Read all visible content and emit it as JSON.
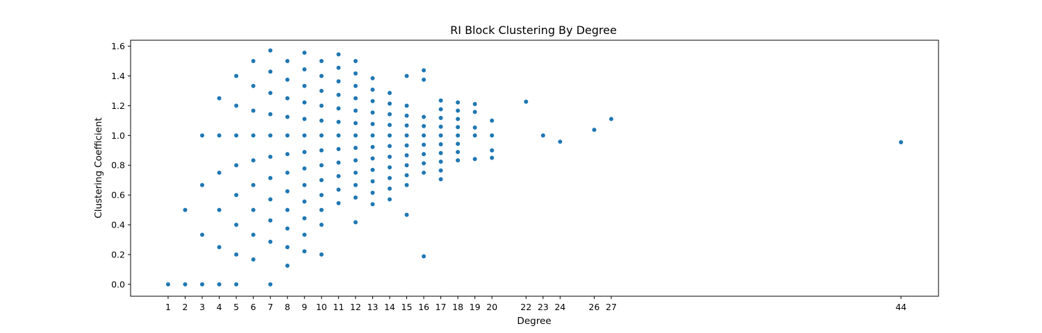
{
  "chart_data": {
    "type": "scatter",
    "title": "RI Block Clustering By Degree",
    "xlabel": "Degree",
    "ylabel": "Clustering Coefficient",
    "xlim": [
      -1.2,
      46.2
    ],
    "ylim": [
      -0.08,
      1.64
    ],
    "x_ticks": [
      1,
      2,
      3,
      4,
      5,
      6,
      7,
      8,
      9,
      10,
      11,
      12,
      13,
      14,
      15,
      16,
      17,
      18,
      19,
      20,
      22,
      23,
      24,
      26,
      27,
      44
    ],
    "y_ticks": [
      0.0,
      0.2,
      0.4,
      0.6,
      0.8,
      1.0,
      1.2,
      1.4,
      1.6
    ],
    "y_tick_labels": [
      "0.0",
      "0.2",
      "0.4",
      "0.6",
      "0.8",
      "1.0",
      "1.2",
      "1.4",
      "1.6"
    ],
    "grid": false,
    "marker_color": "#1f77b4",
    "points": [
      [
        1,
        0.0
      ],
      [
        2,
        0.0
      ],
      [
        2,
        0.5
      ],
      [
        3,
        0.0
      ],
      [
        3,
        0.333
      ],
      [
        3,
        0.667
      ],
      [
        3,
        1.0
      ],
      [
        4,
        0.0
      ],
      [
        4,
        0.25
      ],
      [
        4,
        0.5
      ],
      [
        4,
        0.75
      ],
      [
        4,
        1.0
      ],
      [
        4,
        1.25
      ],
      [
        5,
        0.0
      ],
      [
        5,
        0.2
      ],
      [
        5,
        0.4
      ],
      [
        5,
        0.6
      ],
      [
        5,
        0.8
      ],
      [
        5,
        1.0
      ],
      [
        5,
        1.2
      ],
      [
        5,
        1.4
      ],
      [
        6,
        0.167
      ],
      [
        6,
        0.333
      ],
      [
        6,
        0.5
      ],
      [
        6,
        0.667
      ],
      [
        6,
        0.833
      ],
      [
        6,
        1.0
      ],
      [
        6,
        1.167
      ],
      [
        6,
        1.333
      ],
      [
        6,
        1.5
      ],
      [
        7,
        0.0
      ],
      [
        7,
        0.286
      ],
      [
        7,
        0.429
      ],
      [
        7,
        0.571
      ],
      [
        7,
        0.714
      ],
      [
        7,
        0.857
      ],
      [
        7,
        1.0
      ],
      [
        7,
        1.143
      ],
      [
        7,
        1.286
      ],
      [
        7,
        1.429
      ],
      [
        7,
        1.571
      ],
      [
        8,
        0.125
      ],
      [
        8,
        0.25
      ],
      [
        8,
        0.375
      ],
      [
        8,
        0.5
      ],
      [
        8,
        0.625
      ],
      [
        8,
        0.75
      ],
      [
        8,
        0.875
      ],
      [
        8,
        1.0
      ],
      [
        8,
        1.125
      ],
      [
        8,
        1.25
      ],
      [
        8,
        1.375
      ],
      [
        8,
        1.5
      ],
      [
        9,
        0.222
      ],
      [
        9,
        0.333
      ],
      [
        9,
        0.444
      ],
      [
        9,
        0.556
      ],
      [
        9,
        0.667
      ],
      [
        9,
        0.778
      ],
      [
        9,
        0.889
      ],
      [
        9,
        1.0
      ],
      [
        9,
        1.111
      ],
      [
        9,
        1.222
      ],
      [
        9,
        1.333
      ],
      [
        9,
        1.444
      ],
      [
        9,
        1.556
      ],
      [
        10,
        0.2
      ],
      [
        10,
        0.4
      ],
      [
        10,
        0.5
      ],
      [
        10,
        0.6
      ],
      [
        10,
        0.7
      ],
      [
        10,
        0.8
      ],
      [
        10,
        0.9
      ],
      [
        10,
        1.0
      ],
      [
        10,
        1.1
      ],
      [
        10,
        1.2
      ],
      [
        10,
        1.3
      ],
      [
        10,
        1.4
      ],
      [
        10,
        1.5
      ],
      [
        11,
        0.545
      ],
      [
        11,
        0.636
      ],
      [
        11,
        0.727
      ],
      [
        11,
        0.818
      ],
      [
        11,
        0.909
      ],
      [
        11,
        1.0
      ],
      [
        11,
        1.091
      ],
      [
        11,
        1.182
      ],
      [
        11,
        1.273
      ],
      [
        11,
        1.364
      ],
      [
        11,
        1.455
      ],
      [
        11,
        1.545
      ],
      [
        12,
        0.417
      ],
      [
        12,
        0.583
      ],
      [
        12,
        0.667
      ],
      [
        12,
        0.75
      ],
      [
        12,
        0.833
      ],
      [
        12,
        0.917
      ],
      [
        12,
        1.0
      ],
      [
        12,
        1.083
      ],
      [
        12,
        1.167
      ],
      [
        12,
        1.25
      ],
      [
        12,
        1.333
      ],
      [
        12,
        1.417
      ],
      [
        12,
        1.5
      ],
      [
        13,
        0.538
      ],
      [
        13,
        0.615
      ],
      [
        13,
        0.692
      ],
      [
        13,
        0.769
      ],
      [
        13,
        0.846
      ],
      [
        13,
        0.923
      ],
      [
        13,
        1.0
      ],
      [
        13,
        1.077
      ],
      [
        13,
        1.154
      ],
      [
        13,
        1.231
      ],
      [
        13,
        1.308
      ],
      [
        13,
        1.385
      ],
      [
        14,
        0.571
      ],
      [
        14,
        0.643
      ],
      [
        14,
        0.714
      ],
      [
        14,
        0.786
      ],
      [
        14,
        0.857
      ],
      [
        14,
        0.929
      ],
      [
        14,
        1.0
      ],
      [
        14,
        1.071
      ],
      [
        14,
        1.143
      ],
      [
        14,
        1.214
      ],
      [
        14,
        1.286
      ],
      [
        15,
        0.467
      ],
      [
        15,
        0.667
      ],
      [
        15,
        0.733
      ],
      [
        15,
        0.8
      ],
      [
        15,
        0.867
      ],
      [
        15,
        0.933
      ],
      [
        15,
        1.0
      ],
      [
        15,
        1.067
      ],
      [
        15,
        1.133
      ],
      [
        15,
        1.2
      ],
      [
        15,
        1.4
      ],
      [
        16,
        0.188
      ],
      [
        16,
        0.75
      ],
      [
        16,
        0.813
      ],
      [
        16,
        0.875
      ],
      [
        16,
        0.938
      ],
      [
        16,
        1.0
      ],
      [
        16,
        1.063
      ],
      [
        16,
        1.125
      ],
      [
        16,
        1.375
      ],
      [
        16,
        1.438
      ],
      [
        17,
        0.706
      ],
      [
        17,
        0.765
      ],
      [
        17,
        0.824
      ],
      [
        17,
        0.882
      ],
      [
        17,
        0.941
      ],
      [
        17,
        1.0
      ],
      [
        17,
        1.059
      ],
      [
        17,
        1.118
      ],
      [
        17,
        1.176
      ],
      [
        17,
        1.235
      ],
      [
        18,
        0.833
      ],
      [
        18,
        0.889
      ],
      [
        18,
        0.944
      ],
      [
        18,
        1.0
      ],
      [
        18,
        1.056
      ],
      [
        18,
        1.111
      ],
      [
        18,
        1.167
      ],
      [
        18,
        1.222
      ],
      [
        19,
        0.842
      ],
      [
        19,
        1.0
      ],
      [
        19,
        1.053
      ],
      [
        19,
        1.158
      ],
      [
        19,
        1.211
      ],
      [
        20,
        0.85
      ],
      [
        20,
        0.9
      ],
      [
        20,
        1.0
      ],
      [
        20,
        1.1
      ],
      [
        22,
        1.227
      ],
      [
        23,
        1.0
      ],
      [
        24,
        0.958
      ],
      [
        26,
        1.038
      ],
      [
        27,
        1.111
      ],
      [
        44,
        0.955
      ]
    ]
  }
}
